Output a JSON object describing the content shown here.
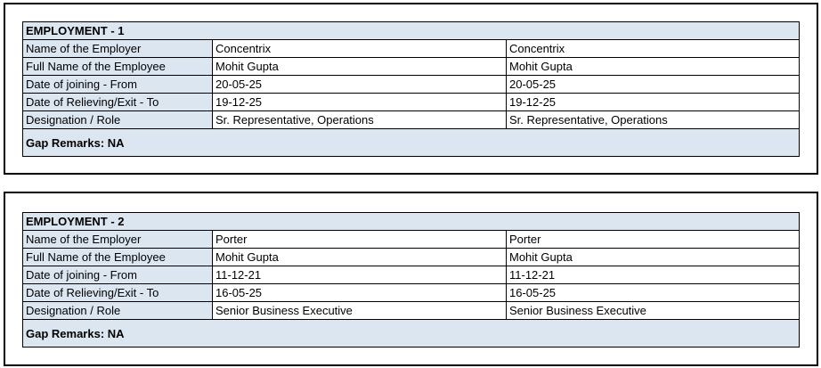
{
  "employments": [
    {
      "title": "EMPLOYMENT - 1",
      "rows": [
        {
          "label": "Name of the Employer",
          "v1": "Concentrix",
          "v2": "Concentrix"
        },
        {
          "label": "Full Name of the Employee",
          "v1": "Mohit Gupta",
          "v2": "Mohit Gupta"
        },
        {
          "label": "Date of joining - From",
          "v1": "20-05-25",
          "v2": "20-05-25"
        },
        {
          "label": "Date of Relieving/Exit - To",
          "v1": "19-12-25",
          "v2": "19-12-25"
        },
        {
          "label": "Designation / Role",
          "v1": "Sr. Representative, Operations",
          "v2": "Sr. Representative, Operations"
        }
      ],
      "gap_remarks": "Gap Remarks: NA"
    },
    {
      "title": "EMPLOYMENT - 2",
      "rows": [
        {
          "label": "Name of the Employer",
          "v1": "Porter",
          "v2": "Porter"
        },
        {
          "label": "Full Name of the Employee",
          "v1": "Mohit Gupta",
          "v2": "Mohit Gupta"
        },
        {
          "label": "Date of joining - From",
          "v1": "11-12-21",
          "v2": "11-12-21"
        },
        {
          "label": "Date of Relieving/Exit - To",
          "v1": "16-05-25",
          "v2": "16-05-25"
        },
        {
          "label": "Designation / Role",
          "v1": "Senior Business Executive",
          "v2": "Senior Business Executive"
        }
      ],
      "gap_remarks": "Gap Remarks: NA"
    }
  ]
}
